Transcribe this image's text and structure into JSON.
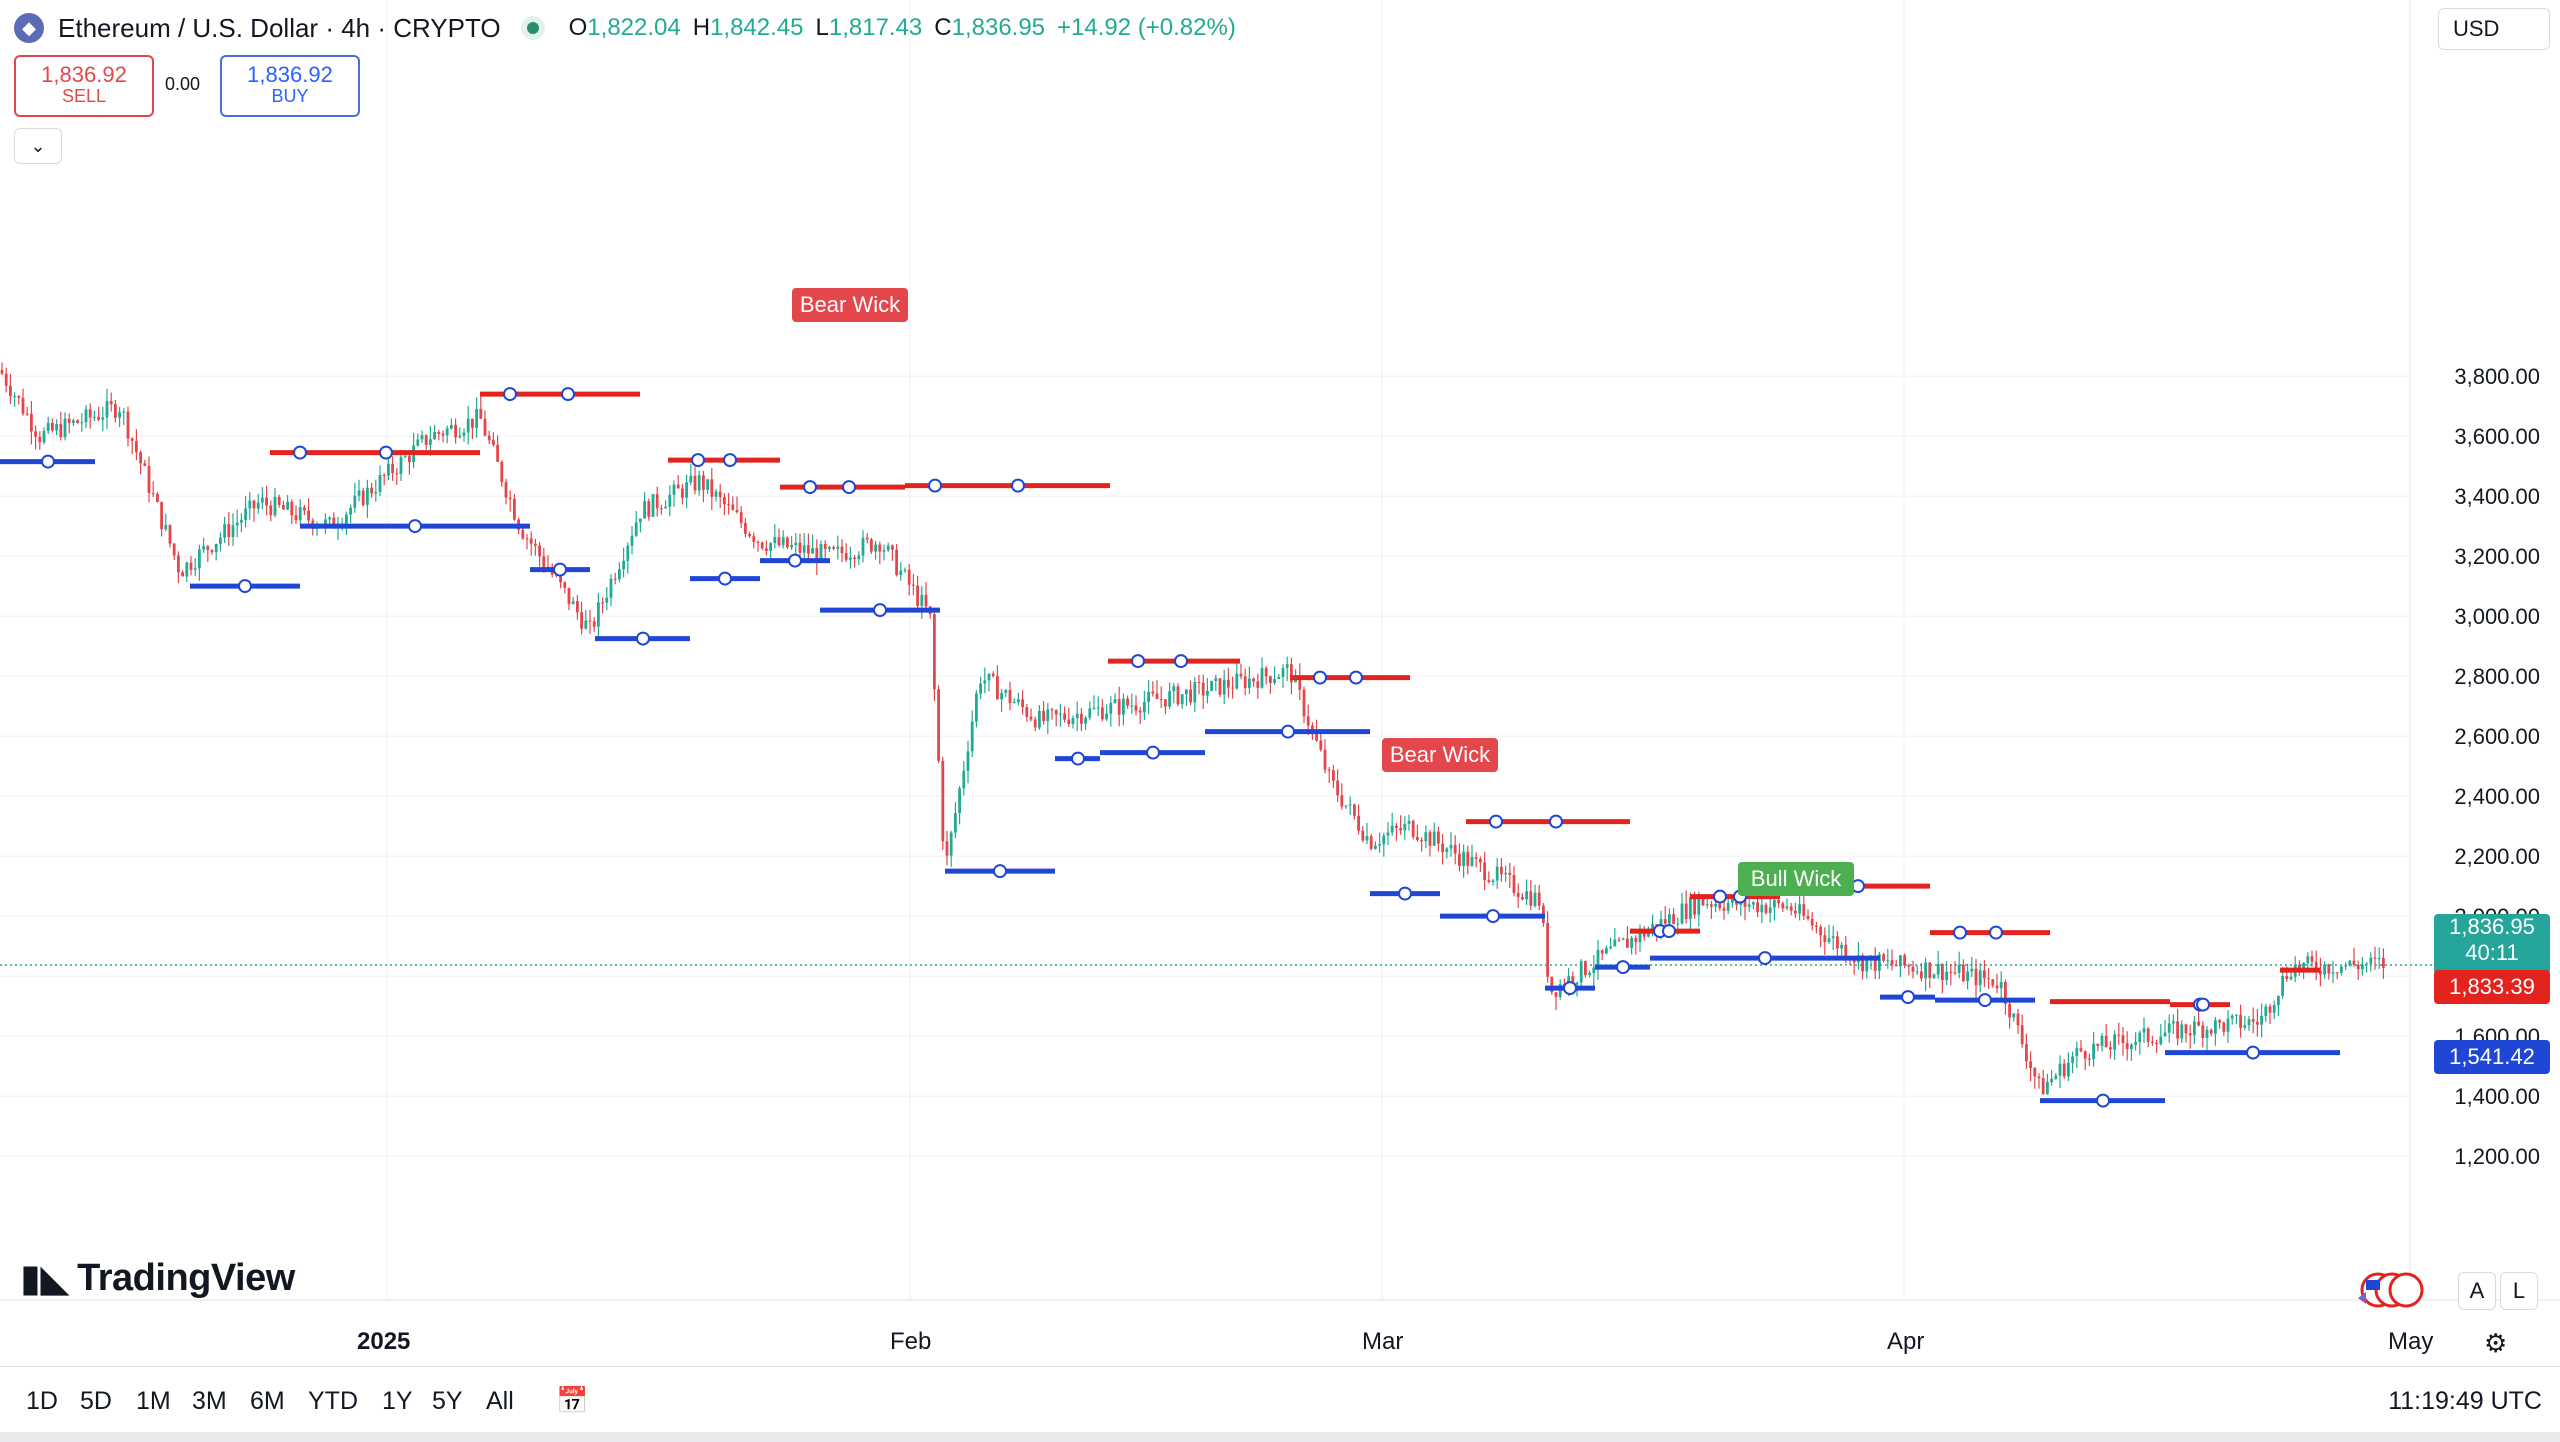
{
  "header": {
    "title": "Ethereum / U.S. Dollar · 4h · CRYPTO",
    "ohlc": {
      "o_label": "O",
      "o": "1,822.04",
      "h_label": "H",
      "h": "1,842.45",
      "l_label": "L",
      "l": "1,817.43",
      "c_label": "C",
      "c": "1,836.95",
      "change": "+14.92 (+0.82%)"
    }
  },
  "trade": {
    "sell_price": "1,836.92",
    "sell_label": "SELL",
    "buy_price": "1,836.92",
    "buy_label": "BUY",
    "spread": "0.00"
  },
  "currency": "USD",
  "y_axis": {
    "ticks": [
      "3,800.00",
      "3,600.00",
      "3,400.00",
      "3,200.00",
      "3,000.00",
      "2,800.00",
      "2,600.00",
      "2,400.00",
      "2,200.00",
      "2,000.00",
      "1,600.00",
      "1,400.00",
      "1,200.00"
    ],
    "last_price": "1,836.95",
    "countdown": "40:11",
    "red_line_price": "1,833.39",
    "blue_line_price": "1,541.42"
  },
  "x_axis": {
    "labels": [
      "2025",
      "Feb",
      "Mar",
      "Apr",
      "May"
    ]
  },
  "chart_data": {
    "type": "candlestick",
    "y_range": [
      1100,
      3900
    ],
    "current_price": 1836.95,
    "annotations": [
      {
        "text": "Bear Wick",
        "color": "#e3474c"
      },
      {
        "text": "Bear Wick",
        "color": "#e3474c"
      },
      {
        "text": "Bull Wick",
        "color": "#4caf50"
      }
    ],
    "resistance_levels": [
      3740,
      3545,
      3520,
      3430,
      3435,
      2850,
      2795,
      2550,
      2315,
      2100,
      2065,
      1950,
      1945,
      1715,
      1705,
      1820
    ],
    "support_levels": [
      3515,
      3100,
      3300,
      3155,
      2925,
      3125,
      3185,
      3020,
      2150,
      2525,
      2545,
      2615,
      2075,
      2000,
      1760,
      1830,
      1860,
      1730,
      1720,
      1385,
      1545
    ]
  },
  "icons": {
    "eth": "ethereum-icon",
    "chevron": "chevron-down-icon",
    "calendar": "calendar-goto-icon",
    "gear": "gear-icon",
    "flags": "events-flags-icon"
  },
  "bottom": {
    "ranges": [
      "1D",
      "5D",
      "1M",
      "3M",
      "6M",
      "YTD",
      "1Y",
      "5Y",
      "All"
    ],
    "clock": "11:19:49 UTC"
  },
  "brand": "TradingView",
  "scale_buttons": [
    "A",
    "L"
  ],
  "colors": {
    "up": "#22ab94",
    "down": "#e3474c",
    "support": "#2046d6",
    "resistance": "#e3231e"
  }
}
